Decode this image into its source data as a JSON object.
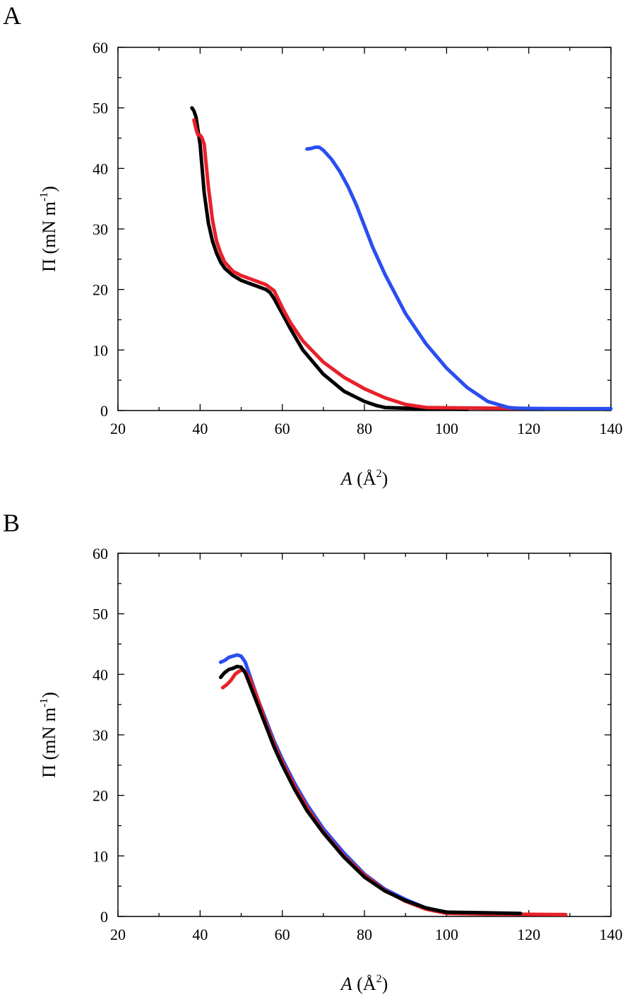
{
  "chart_data": [
    {
      "type": "line",
      "panel_label": "A",
      "xlabel_italic": "A",
      "xlabel_rest": " (Å",
      "xlabel_sup": "2",
      "xlabel_close": ")",
      "ylabel_main": "Π (mN m",
      "ylabel_sup": "-1",
      "ylabel_close": ")",
      "xlim": [
        20,
        140
      ],
      "ylim": [
        0,
        60
      ],
      "xticks": [
        "20",
        "40",
        "60",
        "80",
        "100",
        "120",
        "140"
      ],
      "yticks": [
        "0",
        "10",
        "20",
        "30",
        "40",
        "50",
        "60"
      ],
      "grid": false,
      "series": [
        {
          "color": "#000000",
          "x": [
            38,
            38.5,
            39,
            40,
            41,
            42,
            43,
            44,
            45,
            46,
            48,
            50,
            52,
            54,
            56,
            57,
            58,
            60,
            62,
            65,
            70,
            75,
            80,
            83,
            85,
            90,
            95,
            100,
            105
          ],
          "y": [
            50,
            49.5,
            48.5,
            44,
            36,
            31,
            28,
            26,
            24.5,
            23.5,
            22.3,
            21.5,
            21,
            20.5,
            20,
            19.5,
            18.5,
            16,
            13.5,
            10,
            6,
            3.2,
            1.5,
            0.8,
            0.5,
            0.4,
            0.3,
            0.25,
            0.2
          ]
        },
        {
          "color": "#e8202a",
          "x": [
            38.5,
            39,
            39.5,
            40,
            40.5,
            41,
            42,
            43,
            44,
            45,
            46,
            48,
            50,
            52,
            54,
            56,
            58,
            60,
            62,
            65,
            70,
            75,
            80,
            85,
            90,
            95,
            100,
            110,
            118
          ],
          "y": [
            48,
            46.5,
            45.5,
            45.5,
            45,
            44,
            37,
            31.5,
            28,
            26,
            24.5,
            23,
            22.3,
            21.8,
            21.3,
            20.8,
            19.8,
            17,
            14.5,
            11.5,
            8,
            5.5,
            3.6,
            2.1,
            1,
            0.5,
            0.45,
            0.4,
            0.35
          ]
        },
        {
          "color": "#2a4ef0",
          "x": [
            66,
            67,
            68,
            69,
            70,
            72,
            74,
            76,
            78,
            80,
            82,
            85,
            90,
            95,
            100,
            105,
            110,
            115,
            117,
            120,
            130,
            140
          ],
          "y": [
            43.2,
            43.3,
            43.5,
            43.5,
            43,
            41.5,
            39.5,
            37,
            34,
            30.5,
            27,
            22.5,
            16,
            11,
            7,
            3.8,
            1.5,
            0.5,
            0.4,
            0.35,
            0.3,
            0.3
          ]
        }
      ]
    },
    {
      "type": "line",
      "panel_label": "B",
      "xlabel_italic": "A",
      "xlabel_rest": " (Å",
      "xlabel_sup": "2",
      "xlabel_close": ")",
      "ylabel_main": "Π (mN m",
      "ylabel_sup": "-1",
      "ylabel_close": ")",
      "xlim": [
        20,
        140
      ],
      "ylim": [
        0,
        60
      ],
      "xticks": [
        "20",
        "40",
        "60",
        "80",
        "100",
        "120",
        "140"
      ],
      "yticks": [
        "0",
        "10",
        "20",
        "30",
        "40",
        "50",
        "60"
      ],
      "grid": false,
      "series": [
        {
          "color": "#2a4ef0",
          "x": [
            45,
            46,
            47,
            48,
            49,
            50,
            51,
            52,
            54,
            56,
            58,
            60,
            63,
            66,
            70,
            75,
            80,
            85,
            90,
            95,
            100,
            110,
            118
          ],
          "y": [
            42,
            42.3,
            42.8,
            43,
            43.2,
            43,
            42,
            40,
            36,
            32.5,
            29,
            26,
            22,
            18.5,
            14.5,
            10.5,
            7,
            4.5,
            2.8,
            1.4,
            0.6,
            0.5,
            0.4
          ]
        },
        {
          "color": "#e8202a",
          "x": [
            45.5,
            46.5,
            47.5,
            48.5,
            49.5,
            50.5,
            52,
            54,
            56,
            58,
            60,
            63,
            66,
            70,
            75,
            80,
            85,
            90,
            95,
            100,
            110,
            120,
            129
          ],
          "y": [
            37.8,
            38.3,
            39,
            40,
            40.5,
            40.8,
            39.5,
            36,
            32,
            28.5,
            25.5,
            21.5,
            18,
            14,
            10,
            6.8,
            4.3,
            2.5,
            1.2,
            0.5,
            0.4,
            0.35,
            0.3
          ]
        },
        {
          "color": "#000000",
          "x": [
            45,
            46,
            47,
            48,
            49,
            50,
            51,
            52,
            54,
            56,
            58,
            60,
            63,
            66,
            70,
            75,
            80,
            85,
            90,
            95,
            100,
            110,
            118
          ],
          "y": [
            39.5,
            40.3,
            40.8,
            41,
            41.3,
            41.2,
            40.2,
            38.5,
            35,
            31.5,
            28,
            25,
            21,
            17.5,
            13.8,
            9.8,
            6.5,
            4.2,
            2.6,
            1.4,
            0.7,
            0.6,
            0.5
          ]
        }
      ]
    }
  ]
}
